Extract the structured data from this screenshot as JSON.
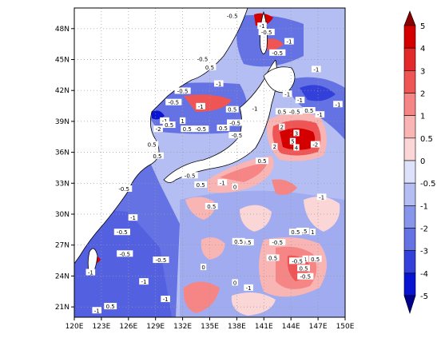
{
  "map": {
    "lon_ticks": [
      "120E",
      "123E",
      "126E",
      "129E",
      "132E",
      "135E",
      "138E",
      "141E",
      "144E",
      "147E",
      "150E"
    ],
    "lat_ticks": [
      "21N",
      "24N",
      "27N",
      "30N",
      "33N",
      "36N",
      "39N",
      "42N",
      "45N",
      "48N"
    ],
    "lon_range": [
      120,
      150
    ],
    "lat_range": [
      20,
      50
    ],
    "gridlines": true,
    "contour_labels": [
      {
        "text": "-0.5",
        "lon": 137.5,
        "lat": 49.2
      },
      {
        "text": "-1",
        "lon": 140.8,
        "lat": 48.2
      },
      {
        "text": "-0.5",
        "lon": 141.3,
        "lat": 47.6
      },
      {
        "text": "-0.5",
        "lon": 142.5,
        "lat": 45.6
      },
      {
        "text": "-1",
        "lon": 143.8,
        "lat": 46.7
      },
      {
        "text": "-0.5",
        "lon": 134.2,
        "lat": 45.0
      },
      {
        "text": "0.5",
        "lon": 135.0,
        "lat": 44.2
      },
      {
        "text": "-1",
        "lon": 146.8,
        "lat": 44.0
      },
      {
        "text": "-0.5",
        "lon": 132.0,
        "lat": 41.9
      },
      {
        "text": "-1",
        "lon": 136.0,
        "lat": 42.6
      },
      {
        "text": "-1",
        "lon": 143.6,
        "lat": 41.6
      },
      {
        "text": "-1",
        "lon": 145.0,
        "lat": 41.0
      },
      {
        "text": "-0.5",
        "lon": 131.0,
        "lat": 40.8
      },
      {
        "text": "-1",
        "lon": 130.0,
        "lat": 39.0
      },
      {
        "text": "-1",
        "lon": 134.0,
        "lat": 40.4
      },
      {
        "text": "0.5",
        "lon": 137.5,
        "lat": 40.1
      },
      {
        "text": "-1",
        "lon": 140.0,
        "lat": 40.2
      },
      {
        "text": "0.5",
        "lon": 143.0,
        "lat": 39.9
      },
      {
        "text": "-0.5",
        "lon": 144.4,
        "lat": 39.9
      },
      {
        "text": "0.5",
        "lon": 146.0,
        "lat": 40.0
      },
      {
        "text": "-1",
        "lon": 147.2,
        "lat": 39.6
      },
      {
        "text": "-1",
        "lon": 149.2,
        "lat": 40.6
      },
      {
        "text": "-0.5",
        "lon": 137.8,
        "lat": 38.8
      },
      {
        "text": "-2",
        "lon": 129.3,
        "lat": 38.2
      },
      {
        "text": "0.5",
        "lon": 130.5,
        "lat": 38.6
      },
      {
        "text": "1",
        "lon": 132.0,
        "lat": 39.0
      },
      {
        "text": "0.5",
        "lon": 132.5,
        "lat": 38.2
      },
      {
        "text": "-0.5",
        "lon": 134.0,
        "lat": 38.2
      },
      {
        "text": "0.5",
        "lon": 136.5,
        "lat": 38.3
      },
      {
        "text": "-0.5",
        "lon": 138.0,
        "lat": 37.6
      },
      {
        "text": "2",
        "lon": 143.0,
        "lat": 38.4
      },
      {
        "text": "5",
        "lon": 144.2,
        "lat": 37.0
      },
      {
        "text": "3",
        "lon": 144.6,
        "lat": 37.8
      },
      {
        "text": "4",
        "lon": 144.6,
        "lat": 36.4
      },
      {
        "text": "2",
        "lon": 142.2,
        "lat": 36.5
      },
      {
        "text": "-2",
        "lon": 146.7,
        "lat": 36.7
      },
      {
        "text": "0.5",
        "lon": 140.8,
        "lat": 35.1
      },
      {
        "text": "0.5",
        "lon": 129.2,
        "lat": 35.6
      },
      {
        "text": "0.5",
        "lon": 128.6,
        "lat": 36.7
      },
      {
        "text": "-0.5",
        "lon": 132.8,
        "lat": 33.7
      },
      {
        "text": "0.5",
        "lon": 134.0,
        "lat": 32.8
      },
      {
        "text": "-1",
        "lon": 136.4,
        "lat": 33.0
      },
      {
        "text": "0",
        "lon": 137.8,
        "lat": 32.6
      },
      {
        "text": "-0.5",
        "lon": 125.5,
        "lat": 32.4
      },
      {
        "text": "-1",
        "lon": 147.4,
        "lat": 31.6
      },
      {
        "text": "0.5",
        "lon": 135.2,
        "lat": 30.7
      },
      {
        "text": "-1",
        "lon": 126.5,
        "lat": 29.6
      },
      {
        "text": "0.5",
        "lon": 145.3,
        "lat": 28.3
      },
      {
        "text": "0.5",
        "lon": 144.5,
        "lat": 28.2
      },
      {
        "text": "1",
        "lon": 146.4,
        "lat": 28.2
      },
      {
        "text": "-0.5",
        "lon": 125.3,
        "lat": 28.2
      },
      {
        "text": "-0.5",
        "lon": 139.0,
        "lat": 27.2
      },
      {
        "text": "-0.5",
        "lon": 142.5,
        "lat": 27.2
      },
      {
        "text": "0.5",
        "lon": 138.2,
        "lat": 27.3
      },
      {
        "text": "-0.5",
        "lon": 125.6,
        "lat": 26.1
      },
      {
        "text": "-0.5",
        "lon": 129.6,
        "lat": 25.5
      },
      {
        "text": "1",
        "lon": 145.6,
        "lat": 25.6
      },
      {
        "text": "0.5",
        "lon": 146.7,
        "lat": 25.6
      },
      {
        "text": "-0.5",
        "lon": 144.7,
        "lat": 25.4
      },
      {
        "text": "0.5",
        "lon": 142.0,
        "lat": 25.7
      },
      {
        "text": "0",
        "lon": 134.3,
        "lat": 24.8
      },
      {
        "text": "0.5",
        "lon": 145.4,
        "lat": 24.7
      },
      {
        "text": "-1",
        "lon": 121.8,
        "lat": 24.3
      },
      {
        "text": "-0.5",
        "lon": 145.6,
        "lat": 23.9
      },
      {
        "text": "-1",
        "lon": 127.7,
        "lat": 23.4
      },
      {
        "text": "0",
        "lon": 137.8,
        "lat": 23.3
      },
      {
        "text": "-1",
        "lon": 139.3,
        "lat": 22.8
      },
      {
        "text": "-1",
        "lon": 130.1,
        "lat": 21.7
      },
      {
        "text": "0.5",
        "lon": 124.0,
        "lat": 21.0
      },
      {
        "text": "-1",
        "lon": 122.5,
        "lat": 20.6
      }
    ]
  },
  "colorbar": {
    "labels": [
      "5",
      "4",
      "3",
      "2",
      "1",
      "0.5",
      "0",
      "-0.5",
      "-1",
      "-2",
      "-3",
      "-4",
      "-5"
    ],
    "colors": [
      "#d40000",
      "#e32a2a",
      "#ef5555",
      "#f68686",
      "#f9b4b4",
      "#fbd6d6",
      "#dde1f9",
      "#b4bef3",
      "#8796ea",
      "#6472e3",
      "#3340d9",
      "#0814d1"
    ],
    "top_arrow_color": "#8b0000",
    "bottom_arrow_color": "#00008b"
  }
}
